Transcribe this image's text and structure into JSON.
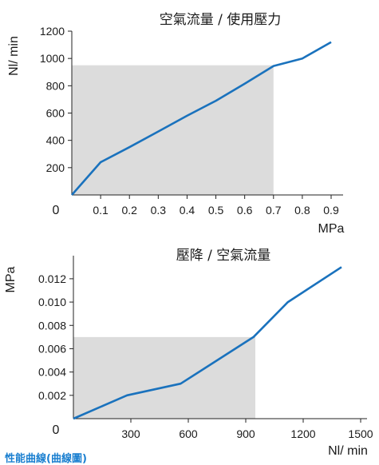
{
  "chart_data": [
    {
      "type": "line",
      "title": "空氣流量 / 使用壓力",
      "xlabel": "MPa",
      "ylabel": "Nl/ min",
      "origin_label": "0",
      "xlim": [
        0,
        0.9
      ],
      "ylim": [
        0,
        1200
      ],
      "x_ticks": [
        "0.1",
        "0.2",
        "0.3",
        "0.4",
        "0.5",
        "0.6",
        "0.7",
        "0.8",
        "0.9"
      ],
      "y_ticks": [
        "200",
        "400",
        "600",
        "800",
        "1000",
        "1200"
      ],
      "shaded_region": {
        "x": [
          0,
          0.7
        ],
        "y": [
          0,
          950
        ]
      },
      "series": [
        {
          "x": [
            0,
            0.1,
            0.2,
            0.3,
            0.4,
            0.5,
            0.6,
            0.7,
            0.8,
            0.9
          ],
          "y": [
            0,
            240,
            350,
            465,
            580,
            690,
            815,
            945,
            1000,
            1120
          ]
        }
      ],
      "grid": false,
      "colors": {
        "line": "#1a72bd",
        "shade": "#dcdcdc"
      }
    },
    {
      "type": "line",
      "title": "壓降 / 空氣流量",
      "xlabel": "Nl/ min",
      "ylabel": "MPa",
      "origin_label": "0",
      "xlim": [
        0,
        1500
      ],
      "ylim": [
        0,
        0.0135
      ],
      "x_ticks": [
        "300",
        "600",
        "900",
        "1200",
        "1500"
      ],
      "y_ticks": [
        "0.002",
        "0.004",
        "0.006",
        "0.008",
        "0.010",
        "0.012"
      ],
      "shaded_region": {
        "x": [
          0,
          950
        ],
        "y": [
          0,
          0.007
        ]
      },
      "series": [
        {
          "x": [
            0,
            280,
            560,
            940,
            1120,
            1400
          ],
          "y": [
            0,
            0.002,
            0.003,
            0.007,
            0.01,
            0.013
          ]
        }
      ],
      "grid": false,
      "colors": {
        "line": "#1a72bd",
        "shade": "#dcdcdc"
      }
    }
  ],
  "footer_text": "性能曲線(曲線圖)"
}
